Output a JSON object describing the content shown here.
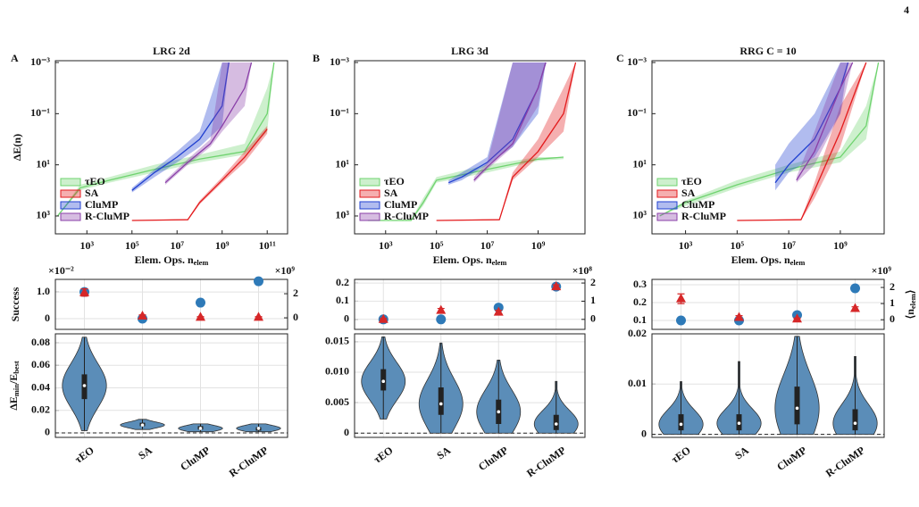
{
  "page_number": "4",
  "chart_data": [
    {
      "type": "line",
      "panel": "A",
      "title": "LRG 2d",
      "x_label": [
        "Elem. Ops. n",
        "elem"
      ],
      "y_label": "ΔE(n)",
      "xlog": true,
      "ylog": true,
      "xlim": [
        40,
        800000000000.0
      ],
      "ylim": [
        5000,
        0.00085
      ],
      "grid": false,
      "legend": "lower-left",
      "xticks": [
        {
          "value": 1000.0,
          "label": "10³"
        },
        {
          "value": 100000.0,
          "label": "10⁵"
        },
        {
          "value": 10000000.0,
          "label": "10⁷"
        },
        {
          "value": 1000000000.0,
          "label": "10⁹"
        },
        {
          "value": 100000000000.0,
          "label": "10¹¹"
        }
      ],
      "yticks": [
        {
          "value": 0.001,
          "label": "10⁻³"
        },
        {
          "value": 0.1,
          "label": "10⁻¹"
        },
        {
          "value": 10,
          "label": "10¹"
        },
        {
          "value": 1000,
          "label": "10³"
        }
      ],
      "series": [
        {
          "name": "τEO",
          "color": "#6fd36f",
          "x": [
            50,
            500,
            10000.0,
            1000000.0,
            100000000.0,
            10000000000.0,
            100000000000.0,
            200000000000.0
          ],
          "values": [
            1000,
            80,
            40,
            15,
            6,
            3,
            0.1,
            0.001
          ],
          "lower": [
            1000,
            60,
            30,
            10,
            4,
            1.5,
            0.01,
            0.001
          ],
          "upper": [
            1000,
            100,
            50,
            20,
            8,
            4,
            0.5,
            0.001
          ]
        },
        {
          "name": "SA",
          "color": "#e31a1c",
          "x": [
            100000.0,
            30000000.0,
            100000000.0,
            1000000000.0,
            10000000000.0,
            100000000000.0
          ],
          "values": [
            1500,
            1400,
            300,
            40,
            5,
            0.4
          ],
          "lower": [
            1500,
            1300,
            250,
            30,
            3,
            0.3
          ],
          "upper": [
            1500,
            1500,
            350,
            50,
            8,
            0.6
          ]
        },
        {
          "name": "CluMP",
          "color": "#2040d0",
          "x": [
            100000.0,
            1000000.0,
            10000000.0,
            100000000.0,
            1000000000.0,
            2000000000.0
          ],
          "values": [
            100,
            20,
            5,
            1,
            0.05,
            0.001
          ],
          "lower": [
            80,
            15,
            3,
            0.5,
            0.001,
            0.001
          ],
          "upper": [
            120,
            30,
            8,
            2,
            0.3,
            0.001
          ]
        },
        {
          "name": "R-CluMP",
          "color": "#8a3fa8",
          "x": [
            3000000.0,
            30000000.0,
            300000000.0,
            1000000000.0,
            10000000000.0,
            20000000000.0
          ],
          "values": [
            50,
            8,
            1.5,
            0.3,
            0.01,
            0.001
          ],
          "lower": [
            40,
            6,
            1,
            0.001,
            0.001,
            0.001
          ],
          "upper": [
            60,
            10,
            2,
            0.5,
            0.05,
            0.001
          ]
        }
      ]
    },
    {
      "type": "scatter",
      "y_label": "Success",
      "y_multiplier": "×10⁻²",
      "y2_multiplier": "×10⁹",
      "grid": true,
      "ylim": [
        -0.4,
        1.47
      ],
      "yticks": [
        0,
        {
          "value": 1,
          "label": "1.0"
        }
      ],
      "y2lim": [
        -0.96,
        3.19
      ],
      "y2ticks": [
        0,
        2
      ],
      "series": [
        {
          "color": "#2e7ab8",
          "values": [
            1.0,
            0.0,
            0.6,
            1.4
          ]
        },
        {
          "color": "#d62728",
          "axis": "y2",
          "values": [
            2.1,
            0.15,
            0.05,
            0.05
          ],
          "errors": [
            0.3,
            0.1,
            0.05,
            0.05
          ]
        }
      ]
    },
    {
      "type": "violin",
      "y_label": [
        "ΔE",
        "min",
        "/E",
        "best"
      ],
      "grid": true,
      "ylim": [
        -0.004,
        0.088
      ],
      "yticks": [
        0,
        0.02,
        0.04,
        0.06,
        0.08
      ],
      "color": "#5b8db8",
      "categories": [
        "τEO",
        "SA",
        "CluMP",
        "R-CluMP"
      ],
      "stats": [
        {
          "min": 0.002,
          "q1": 0.03,
          "median": 0.042,
          "q3": 0.052,
          "max": 0.085
        },
        {
          "min": 0.003,
          "q1": 0.006,
          "median": 0.007,
          "q3": 0.009,
          "max": 0.012
        },
        {
          "min": 0.001,
          "q1": 0.003,
          "median": 0.004,
          "q3": 0.006,
          "max": 0.008
        },
        {
          "min": 0.001,
          "q1": 0.002,
          "median": 0.004,
          "q3": 0.005,
          "max": 0.008
        }
      ]
    },
    {
      "type": "line",
      "panel": "B",
      "title": "LRG 3d",
      "x_label": [
        "Elem. Ops. n",
        "elem"
      ],
      "xlog": true,
      "ylog": true,
      "xlim": [
        60,
        70000000000.0
      ],
      "ylim": [
        5000,
        0.00085
      ],
      "grid": false,
      "legend": "lower-left",
      "xticks": [
        {
          "value": 1000.0,
          "label": "10³"
        },
        {
          "value": 100000.0,
          "label": "10⁵"
        },
        {
          "value": 10000000.0,
          "label": "10⁷"
        },
        {
          "value": 1000000000.0,
          "label": "10⁹"
        }
      ],
      "yticks": [
        {
          "value": 0.001,
          "label": "10⁻³"
        },
        {
          "value": 0.1,
          "label": "10⁻¹"
        },
        {
          "value": 10,
          "label": "10¹"
        },
        {
          "value": 1000,
          "label": "10³"
        }
      ],
      "series": [
        {
          "name": "τEO",
          "color": "#6fd36f",
          "x": [
            200,
            10000.0,
            30000.0,
            100000.0,
            10000000.0,
            1000000000.0,
            10000000000.0
          ],
          "values": [
            1500,
            1500,
            300,
            40,
            15,
            6,
            5
          ],
          "lower": [
            1500,
            1400,
            200,
            30,
            10,
            5,
            5
          ],
          "upper": [
            1500,
            1500,
            400,
            50,
            20,
            7,
            6
          ]
        },
        {
          "name": "SA",
          "color": "#e31a1c",
          "x": [
            100000.0,
            30000000.0,
            100000000.0,
            1000000000.0,
            10000000000.0,
            30000000000.0
          ],
          "values": [
            1500,
            1400,
            30,
            3,
            0.1,
            0.001
          ],
          "lower": [
            1500,
            1300,
            20,
            1,
            0.01,
            0.001
          ],
          "upper": [
            1500,
            1500,
            40,
            5,
            0.5,
            0.001
          ]
        },
        {
          "name": "CluMP",
          "color": "#2040d0",
          "x": [
            300000.0,
            1000000.0,
            10000000.0,
            100000000.0,
            1000000000.0,
            2000000000.0
          ],
          "values": [
            50,
            30,
            8,
            1,
            0.01,
            0.001
          ],
          "lower": [
            40,
            20,
            5,
            0.001,
            0.001,
            0.001
          ],
          "upper": [
            60,
            40,
            10,
            2,
            0.1,
            0.001
          ]
        },
        {
          "name": "R-CluMP",
          "color": "#8a3fa8",
          "x": [
            3000000.0,
            10000000.0,
            100000000.0,
            1000000000.0,
            2000000000.0
          ],
          "values": [
            40,
            12,
            1.5,
            0.01,
            0.001
          ],
          "lower": [
            30,
            8,
            0.001,
            0.001,
            0.001
          ],
          "upper": [
            50,
            15,
            2,
            0.05,
            0.001
          ]
        }
      ]
    },
    {
      "type": "scatter",
      "y2_multiplier": "×10⁸",
      "grid": true,
      "ylim": [
        -0.055,
        0.22
      ],
      "yticks": [
        0,
        0.1,
        0.2
      ],
      "y2lim": [
        -0.55,
        2.2
      ],
      "y2ticks": [
        0,
        1,
        2
      ],
      "series": [
        {
          "color": "#2e7ab8",
          "values": [
            0.0,
            0.0,
            0.065,
            0.18
          ]
        },
        {
          "color": "#d62728",
          "axis": "y2",
          "values": [
            0.0,
            0.5,
            0.4,
            1.8
          ],
          "errors": [
            0.05,
            0.1,
            0.1,
            0.1
          ]
        }
      ]
    },
    {
      "type": "violin",
      "grid": true,
      "ylim": [
        -0.0007,
        0.0163
      ],
      "yticks": [
        0,
        0.005,
        {
          "value": 0.01,
          "label": "0.010"
        },
        0.015
      ],
      "color": "#5b8db8",
      "categories": [
        "τEO",
        "SA",
        "CluMP",
        "R-CluMP"
      ],
      "stats": [
        {
          "min": 0.0023,
          "q1": 0.007,
          "median": 0.0085,
          "q3": 0.0105,
          "max": 0.0158
        },
        {
          "min": 0,
          "q1": 0.003,
          "median": 0.0048,
          "q3": 0.0075,
          "max": 0.0148
        },
        {
          "min": 0,
          "q1": 0.0015,
          "median": 0.0035,
          "q3": 0.0055,
          "max": 0.012
        },
        {
          "min": 0,
          "q1": 0.0005,
          "median": 0.0015,
          "q3": 0.003,
          "max": 0.0085
        }
      ]
    },
    {
      "type": "line",
      "panel": "C",
      "title": "RRG C = 10",
      "x_label": [
        "Elem. Ops. n",
        "elem"
      ],
      "xlog": true,
      "ylog": true,
      "xlim": [
        50,
        50000000000.0
      ],
      "ylim": [
        5000,
        0.00085
      ],
      "grid": false,
      "legend": "lower-left",
      "xticks": [
        {
          "value": 1000.0,
          "label": "10³"
        },
        {
          "value": 100000.0,
          "label": "10⁵"
        },
        {
          "value": 10000000.0,
          "label": "10⁷"
        },
        {
          "value": 1000000000.0,
          "label": "10⁹"
        }
      ],
      "yticks": [
        {
          "value": 0.001,
          "label": "10⁻³"
        },
        {
          "value": 0.1,
          "label": "10⁻¹"
        },
        {
          "value": 10,
          "label": "10¹"
        },
        {
          "value": 1000,
          "label": "10³"
        }
      ],
      "series": [
        {
          "name": "τEO",
          "color": "#6fd36f",
          "x": [
            100,
            1000.0,
            100000.0,
            10000000.0,
            1000000000.0,
            10000000000.0,
            30000000000.0
          ],
          "values": [
            1000,
            300,
            60,
            15,
            5,
            0.3,
            0.001
          ],
          "lower": [
            1000,
            250,
            40,
            10,
            3,
            0.05,
            0.001
          ],
          "upper": [
            1000,
            400,
            80,
            20,
            8,
            1,
            0.001
          ]
        },
        {
          "name": "SA",
          "color": "#e31a1c",
          "x": [
            100000.0,
            30000000.0,
            100000000.0,
            1000000000.0,
            10000000000.0
          ],
          "values": [
            1500,
            1400,
            100,
            0.5,
            0.001
          ],
          "lower": [
            1500,
            1300,
            50,
            0.05,
            0.001
          ],
          "upper": [
            1500,
            1500,
            200,
            2,
            0.001
          ]
        },
        {
          "name": "CluMP",
          "color": "#2040d0",
          "x": [
            3000000.0,
            10000000.0,
            100000000.0,
            1000000000.0,
            2000000000.0
          ],
          "values": [
            50,
            10,
            1,
            0.01,
            0.001
          ],
          "lower": [
            10,
            1.5,
            0.1,
            0.001,
            0.001
          ],
          "upper": [
            100,
            20,
            5,
            0.1,
            0.001
          ]
        },
        {
          "name": "R-CluMP",
          "color": "#8a3fa8",
          "x": [
            20000000.0,
            100000000.0,
            1000000000.0,
            3000000000.0
          ],
          "values": [
            40,
            3,
            0.01,
            0.001
          ],
          "lower": [
            30,
            0.5,
            0.001,
            0.001
          ],
          "upper": [
            50,
            10,
            0.1,
            0.001
          ]
        }
      ]
    },
    {
      "type": "scatter",
      "y2_label": [
        "⟨n",
        "elem",
        "⟩"
      ],
      "y2_multiplier": "×10⁹",
      "grid": true,
      "ylim": [
        0.05,
        0.33
      ],
      "yticks": [
        0.1,
        0.2,
        0.3
      ],
      "y2lim": [
        -0.6,
        2.5
      ],
      "y2ticks": [
        0,
        1,
        2
      ],
      "series": [
        {
          "color": "#2e7ab8",
          "values": [
            0.1,
            0.1,
            0.13,
            0.28
          ]
        },
        {
          "color": "#d62728",
          "axis": "y2",
          "values": [
            1.3,
            0.15,
            0.05,
            0.7
          ],
          "errors": [
            0.3,
            0.1,
            0.05,
            0.1
          ]
        }
      ]
    },
    {
      "type": "violin",
      "grid": true,
      "ylim": [
        -0.0006,
        0.02
      ],
      "yticks": [
        0,
        0.01,
        0.02
      ],
      "color": "#5b8db8",
      "categories": [
        "τEO",
        "SA",
        "CluMP",
        "R-CluMP"
      ],
      "stats": [
        {
          "min": 0,
          "q1": 0.0008,
          "median": 0.002,
          "q3": 0.004,
          "max": 0.0105
        },
        {
          "min": 0,
          "q1": 0.0008,
          "median": 0.0022,
          "q3": 0.004,
          "max": 0.0145
        },
        {
          "min": 0,
          "q1": 0.002,
          "median": 0.0052,
          "q3": 0.0095,
          "max": 0.0195
        },
        {
          "min": 0,
          "q1": 0.0008,
          "median": 0.0022,
          "q3": 0.005,
          "max": 0.0155
        }
      ]
    }
  ]
}
